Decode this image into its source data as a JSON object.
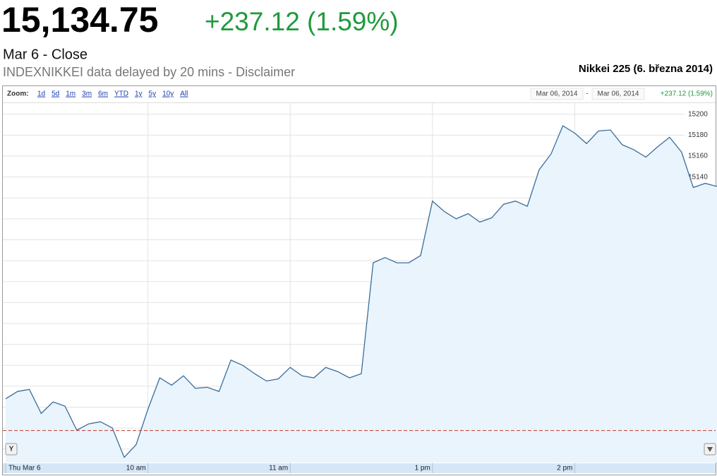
{
  "quote": {
    "price": "15,134.75",
    "change": "+237.12 (1.59%)",
    "session": "Mar 6 - Close",
    "disclaimer": "INDEXNIKKEI data delayed by 20 mins - Disclaimer"
  },
  "toolbar": {
    "zoom_label": "Zoom:",
    "zoom_options": [
      "1d",
      "5d",
      "1m",
      "3m",
      "6m",
      "YTD",
      "1y",
      "5y",
      "10y",
      "All"
    ],
    "range_start": "Mar 06, 2014",
    "range_sep": "-",
    "range_end": "Mar 06, 2014",
    "range_change": "+237.12 (1.59%)",
    "y_button": "Y"
  },
  "chart_data": {
    "type": "line",
    "title": "Nikkei 225 (6. března 2014)",
    "categories": [
      "Thu Mar 6",
      null,
      null,
      null,
      null,
      null,
      null,
      null,
      null,
      null,
      null,
      null,
      "10 am",
      null,
      null,
      null,
      null,
      null,
      null,
      null,
      null,
      null,
      null,
      null,
      "11 am",
      null,
      null,
      null,
      null,
      null,
      null,
      null,
      null,
      null,
      null,
      null,
      "1 pm",
      null,
      null,
      null,
      null,
      null,
      null,
      null,
      null,
      null,
      null,
      null,
      "2 pm",
      null,
      null,
      null,
      null,
      null,
      null,
      null,
      null,
      null,
      null,
      null,
      null
    ],
    "values": [
      14928,
      14935,
      14937,
      14914,
      14925,
      14921,
      14898,
      14904,
      14906,
      14900,
      14872,
      14884,
      14918,
      14948,
      14941,
      14950,
      14938,
      14939,
      14935,
      14965,
      14960,
      14952,
      14945,
      14947,
      14958,
      14950,
      14948,
      14958,
      14954,
      14948,
      14952,
      15058,
      15063,
      15058,
      15058,
      15065,
      15117,
      15107,
      15100,
      15105,
      15097,
      15101,
      15114,
      15117,
      15112,
      15147,
      15162,
      15189,
      15182,
      15172,
      15184,
      15185,
      15171,
      15166,
      15159,
      15169,
      15178,
      15164,
      15130,
      15134,
      15131
    ],
    "color": "#3a6d9c",
    "fill_color": "#e9f4fc",
    "reference_line": 14897.63,
    "reference_color": "#c0392b",
    "ylim": [
      14867,
      15210
    ],
    "yticks": [
      14880,
      14900,
      14920,
      14940,
      14960,
      14980,
      15000,
      15020,
      15040,
      15060,
      15080,
      15100,
      15120,
      15140,
      15160,
      15180,
      15200
    ],
    "grid": true
  }
}
